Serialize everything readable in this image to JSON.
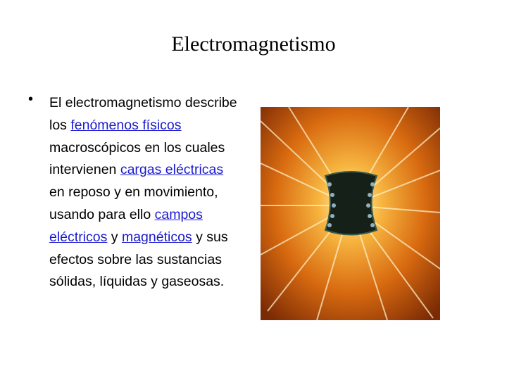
{
  "title": "Electromagnetismo",
  "bullet": {
    "segments": [
      {
        "text": "El electromagnetismo describe los "
      },
      {
        "text": "fenómenos físicos",
        "link": true
      },
      {
        "text": " macroscópicos en los cuales intervienen "
      },
      {
        "text": "cargas eléctricas",
        "link": true
      },
      {
        "text": " en reposo y en movimiento, usando para ello "
      },
      {
        "text": "campos eléctricos",
        "link": true
      },
      {
        "text": " y "
      },
      {
        "text": "magnéticos",
        "link": true
      },
      {
        "text": " y sus efectos sobre las sustancias sólidas, líquidas y gaseosas."
      }
    ]
  }
}
